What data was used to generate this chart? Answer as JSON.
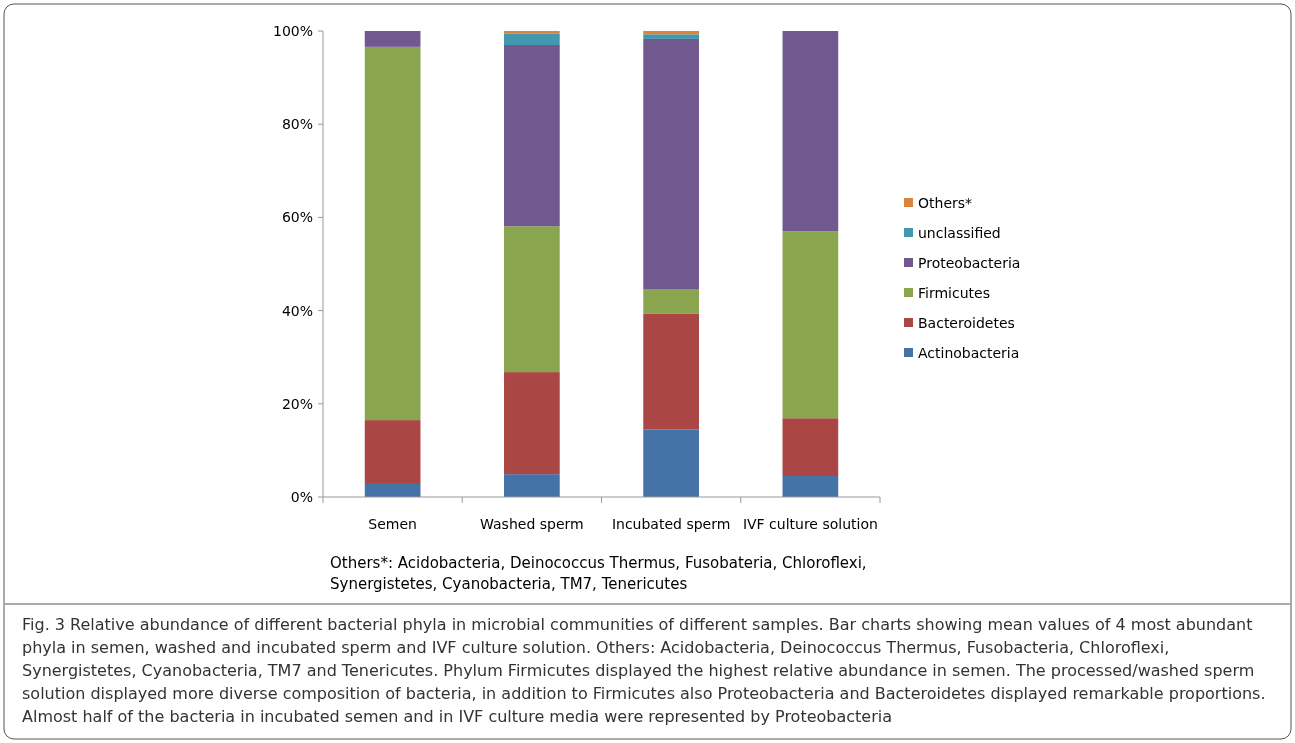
{
  "chart_data": {
    "type": "bar",
    "stacked": true,
    "categories": [
      "Semen",
      "Washed sperm",
      "Incubated sperm",
      "IVF culture solution"
    ],
    "series": [
      {
        "name": "Actinobacteria",
        "color": "#4572a7",
        "values": [
          2.8,
          4.9,
          14.5,
          4.5
        ]
      },
      {
        "name": "Bacteroidetes",
        "color": "#aa4643",
        "values": [
          13.7,
          21.9,
          24.8,
          12.4
        ]
      },
      {
        "name": "Firmicutes",
        "color": "#89a54e",
        "values": [
          80.1,
          31.3,
          5.2,
          40.1
        ]
      },
      {
        "name": "Proteobacteria",
        "color": "#71588f",
        "values": [
          3.4,
          38.9,
          53.8,
          43.0
        ]
      },
      {
        "name": "unclassified",
        "color": "#4198af",
        "values": [
          0,
          2.5,
          1.0,
          0
        ]
      },
      {
        "name": "Others*",
        "color": "#db843d",
        "values": [
          0,
          0.5,
          0.7,
          0
        ]
      }
    ],
    "ylim": [
      0,
      100
    ],
    "yticks": [
      {
        "value": 0,
        "label": "0%"
      },
      {
        "value": 20,
        "label": "20%"
      },
      {
        "value": 40,
        "label": "40%"
      },
      {
        "value": 60,
        "label": "60%"
      },
      {
        "value": 80,
        "label": "80%"
      },
      {
        "value": 100,
        "label": "100%"
      }
    ],
    "grid": false,
    "legend": "right",
    "annotations": [
      "Others*: Acidobacteria, Deinococcus Thermus, Fusobateria, Chloroflexi, Synergistetes, Cyanobacteria, TM7, Tenericutes",
      "Fig. 3 Relative abundance of different bacterial phyla in microbial communities of different samples. Bar charts showing mean values of 4 most abundant phyla in semen, washed and incubated sperm and IVF culture solution. Others: Acidobacteria, Deinococcus Thermus, Fusobacteria, Chloroflexi, Synergistetes, Cyanobacteria, TM7 and Tenericutes. Phylum Firmicutes displayed the highest relative abundance in semen. The processed/washed sperm solution displayed more diverse composition of bacteria, in addition to Firmicutes also Proteobacteria and Bacteroidetes displayed remarkable proportions. Almost half of the bacteria in incubated semen and in IVF culture media were represented by Proteobacteria"
    ]
  }
}
